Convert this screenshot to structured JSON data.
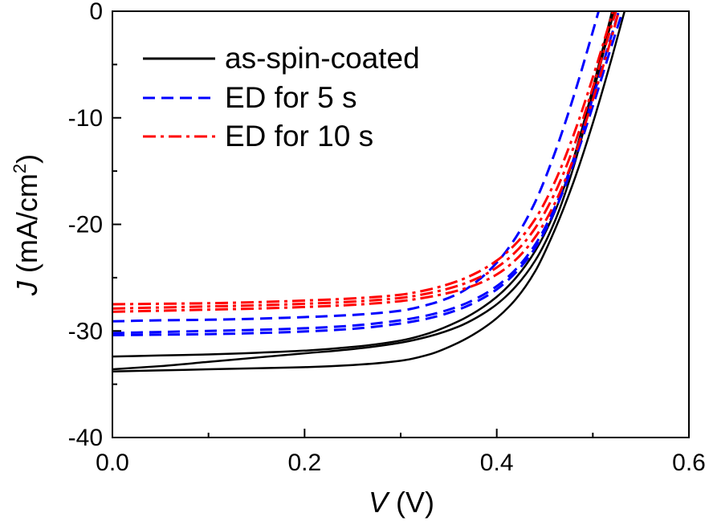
{
  "chart_data": {
    "type": "line",
    "xlabel": {
      "var": "V",
      "unit": "(V)"
    },
    "ylabel": {
      "var": "J",
      "unit": "(mA/cm",
      "sup": "2",
      "close": ")"
    },
    "xlim": [
      0,
      0.6
    ],
    "ylim": [
      -40,
      0
    ],
    "xticks": [
      0,
      0.2,
      0.4,
      0.6
    ],
    "xtick_labels": [
      "0.0",
      "0.2",
      "0.4",
      "0.6"
    ],
    "xminor_ticks": [
      0.1,
      0.3,
      0.5
    ],
    "yticks": [
      0,
      -10,
      -20,
      -30,
      -40
    ],
    "ytick_labels": [
      "0",
      "-10",
      "-20",
      "-30",
      "-40"
    ],
    "yminor_ticks": [
      -5,
      -15,
      -25,
      -35
    ],
    "grid": false,
    "legend_position": "top-left",
    "series": [
      {
        "name": "as-spin-coated",
        "color": "#000000",
        "line_style": "solid",
        "curves": [
          {
            "x": [
              0,
              0.05,
              0.1,
              0.15,
              0.2,
              0.25,
              0.3,
              0.33,
              0.36,
              0.38,
              0.4,
              0.42,
              0.44,
              0.46,
              0.48,
              0.5,
              0.52
            ],
            "y": [
              -32.4,
              -32.3,
              -32.2,
              -32.05,
              -31.85,
              -31.5,
              -30.9,
              -30.2,
              -29.1,
              -28.1,
              -26.8,
              -25.0,
              -22.5,
              -18.9,
              -13.8,
              -7.2,
              0
            ]
          },
          {
            "x": [
              0,
              0.05,
              0.1,
              0.15,
              0.2,
              0.25,
              0.3,
              0.33,
              0.36,
              0.38,
              0.4,
              0.42,
              0.44,
              0.46,
              0.48,
              0.5,
              0.522
            ],
            "y": [
              -33.6,
              -33.3,
              -32.9,
              -32.5,
              -32.1,
              -31.7,
              -31.1,
              -30.5,
              -29.6,
              -28.7,
              -27.5,
              -25.8,
              -23.4,
              -19.8,
              -14.6,
              -7.8,
              0
            ]
          },
          {
            "x": [
              0,
              0.05,
              0.1,
              0.15,
              0.2,
              0.25,
              0.3,
              0.33,
              0.36,
              0.38,
              0.4,
              0.42,
              0.44,
              0.46,
              0.48,
              0.5,
              0.52,
              0.533
            ],
            "y": [
              -33.8,
              -33.7,
              -33.6,
              -33.5,
              -33.4,
              -33.2,
              -32.8,
              -32.2,
              -31.1,
              -30.1,
              -28.8,
              -27.0,
              -24.4,
              -20.6,
              -16.0,
              -10.5,
              -4.3,
              0
            ]
          }
        ]
      },
      {
        "name": "ED for 5 s",
        "color": "#0000ff",
        "line_style": "dash",
        "curves": [
          {
            "x": [
              0,
              0.05,
              0.1,
              0.15,
              0.2,
              0.25,
              0.3,
              0.33,
              0.36,
              0.38,
              0.4,
              0.42,
              0.44,
              0.46,
              0.48,
              0.5,
              0.506
            ],
            "y": [
              -29.1,
              -29.0,
              -28.95,
              -28.85,
              -28.7,
              -28.5,
              -28.1,
              -27.5,
              -26.5,
              -25.3,
              -23.6,
              -21.2,
              -17.9,
              -13.4,
              -8.0,
              -1.9,
              0
            ]
          },
          {
            "x": [
              0,
              0.05,
              0.1,
              0.15,
              0.2,
              0.25,
              0.3,
              0.33,
              0.36,
              0.38,
              0.4,
              0.42,
              0.44,
              0.46,
              0.48,
              0.5,
              0.52,
              0.527
            ],
            "y": [
              -30.2,
              -30.1,
              -30.0,
              -29.9,
              -29.75,
              -29.5,
              -29.0,
              -28.5,
              -27.7,
              -26.9,
              -25.8,
              -24.2,
              -21.9,
              -18.5,
              -13.9,
              -8.1,
              -2.1,
              0
            ]
          },
          {
            "x": [
              0,
              0.05,
              0.1,
              0.15,
              0.2,
              0.25,
              0.3,
              0.33,
              0.36,
              0.38,
              0.4,
              0.42,
              0.44,
              0.46,
              0.48,
              0.5,
              0.52,
              0.531
            ],
            "y": [
              -30.4,
              -30.35,
              -30.3,
              -30.2,
              -30.05,
              -29.8,
              -29.3,
              -28.8,
              -28.0,
              -27.2,
              -26.1,
              -24.5,
              -22.2,
              -18.8,
              -14.3,
              -8.9,
              -3.1,
              0
            ]
          }
        ]
      },
      {
        "name": "ED for 10 s",
        "color": "#ff0000",
        "line_style": "dash-dot",
        "curves": [
          {
            "x": [
              0,
              0.05,
              0.1,
              0.15,
              0.2,
              0.25,
              0.3,
              0.33,
              0.36,
              0.38,
              0.4,
              0.42,
              0.44,
              0.46,
              0.48,
              0.5,
              0.521
            ],
            "y": [
              -27.5,
              -27.45,
              -27.4,
              -27.3,
              -27.15,
              -26.95,
              -26.6,
              -26.1,
              -25.3,
              -24.5,
              -23.4,
              -21.8,
              -19.5,
              -16.1,
              -11.6,
              -6.2,
              0
            ]
          },
          {
            "x": [
              0,
              0.05,
              0.1,
              0.15,
              0.2,
              0.25,
              0.3,
              0.33,
              0.36,
              0.38,
              0.4,
              0.42,
              0.44,
              0.46,
              0.48,
              0.5,
              0.524
            ],
            "y": [
              -27.9,
              -27.8,
              -27.7,
              -27.6,
              -27.45,
              -27.25,
              -26.9,
              -26.45,
              -25.75,
              -25.05,
              -24.05,
              -22.55,
              -20.35,
              -17.15,
              -12.75,
              -7.15,
              0
            ]
          },
          {
            "x": [
              0,
              0.05,
              0.1,
              0.15,
              0.2,
              0.25,
              0.3,
              0.33,
              0.36,
              0.38,
              0.4,
              0.42,
              0.44,
              0.46,
              0.48,
              0.5,
              0.52,
              0.527
            ],
            "y": [
              -28.2,
              -28.1,
              -28.0,
              -27.9,
              -27.75,
              -27.55,
              -27.2,
              -26.8,
              -26.2,
              -25.6,
              -24.7,
              -23.3,
              -21.2,
              -18.1,
              -13.8,
              -8.3,
              -2.3,
              0
            ]
          }
        ]
      }
    ]
  }
}
